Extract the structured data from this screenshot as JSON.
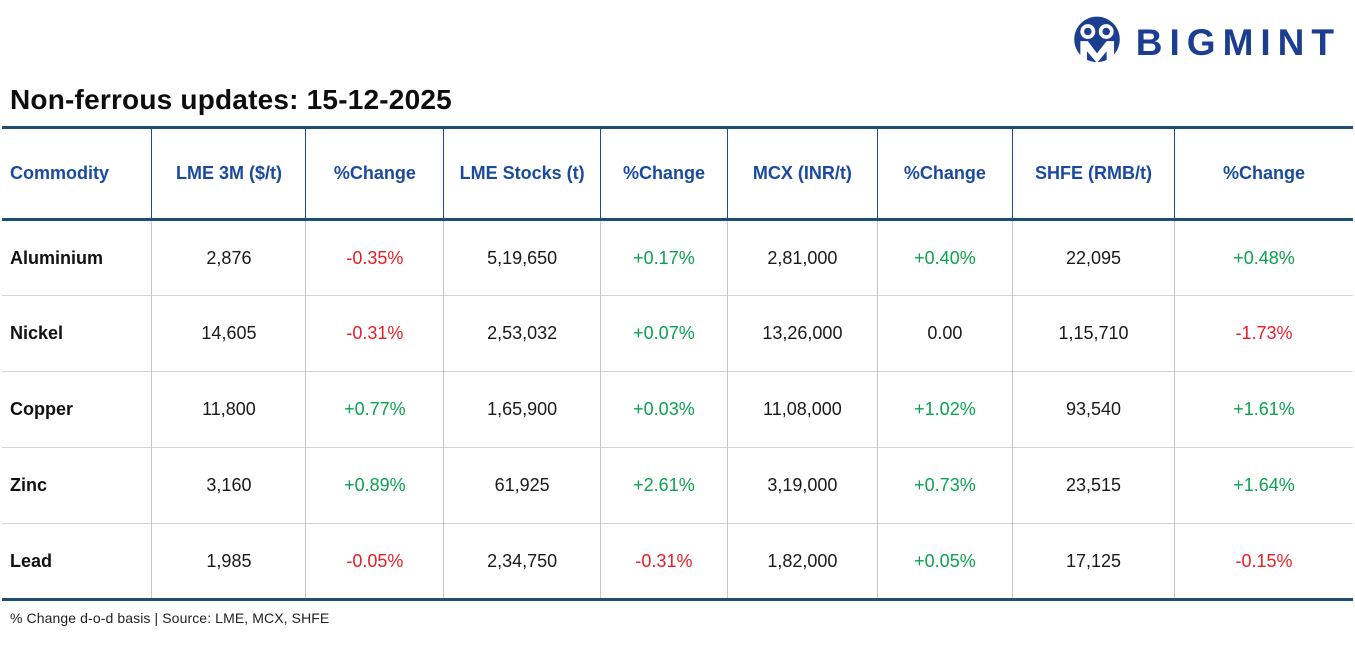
{
  "logo": {
    "text": "BIGMINT"
  },
  "page_title": "Non-ferrous updates: 15-12-2025",
  "chart_data": {
    "type": "table",
    "title": "Non-ferrous updates: 15-12-2025",
    "columns": [
      {
        "id": "commodity",
        "label": "Commodity"
      },
      {
        "id": "lme-3m",
        "label": "LME 3M ($/t)"
      },
      {
        "id": "lme-3m-change",
        "label": "%Change"
      },
      {
        "id": "lme-stocks",
        "label": "LME Stocks (t)"
      },
      {
        "id": "lme-stocks-change",
        "label": "%Change"
      },
      {
        "id": "mcx",
        "label": "MCX (INR/t)"
      },
      {
        "id": "mcx-change",
        "label": "%Change"
      },
      {
        "id": "shfe",
        "label": "SHFE (RMB/t)"
      },
      {
        "id": "shfe-change",
        "label": "%Change"
      }
    ],
    "rows": [
      {
        "commodity": "Aluminium",
        "cells": [
          {
            "text": "2,876",
            "tone": "plain"
          },
          {
            "text": "-0.35%",
            "tone": "neg"
          },
          {
            "text": "5,19,650",
            "tone": "plain"
          },
          {
            "text": "+0.17%",
            "tone": "pos"
          },
          {
            "text": "2,81,000",
            "tone": "plain"
          },
          {
            "text": "+0.40%",
            "tone": "pos"
          },
          {
            "text": "22,095",
            "tone": "plain"
          },
          {
            "text": "+0.48%",
            "tone": "pos"
          }
        ]
      },
      {
        "commodity": "Nickel",
        "cells": [
          {
            "text": "14,605",
            "tone": "plain"
          },
          {
            "text": "-0.31%",
            "tone": "neg"
          },
          {
            "text": "2,53,032",
            "tone": "plain"
          },
          {
            "text": "+0.07%",
            "tone": "pos"
          },
          {
            "text": "13,26,000",
            "tone": "plain"
          },
          {
            "text": "0.00",
            "tone": "plain"
          },
          {
            "text": "1,15,710",
            "tone": "plain"
          },
          {
            "text": "-1.73%",
            "tone": "neg"
          }
        ]
      },
      {
        "commodity": "Copper",
        "cells": [
          {
            "text": "11,800",
            "tone": "plain"
          },
          {
            "text": "+0.77%",
            "tone": "pos"
          },
          {
            "text": "1,65,900",
            "tone": "plain"
          },
          {
            "text": "+0.03%",
            "tone": "pos"
          },
          {
            "text": "11,08,000",
            "tone": "plain"
          },
          {
            "text": "+1.02%",
            "tone": "pos"
          },
          {
            "text": "93,540",
            "tone": "plain"
          },
          {
            "text": "+1.61%",
            "tone": "pos"
          }
        ]
      },
      {
        "commodity": "Zinc",
        "cells": [
          {
            "text": "3,160",
            "tone": "plain"
          },
          {
            "text": "+0.89%",
            "tone": "pos"
          },
          {
            "text": "61,925",
            "tone": "plain"
          },
          {
            "text": "+2.61%",
            "tone": "pos"
          },
          {
            "text": "3,19,000",
            "tone": "plain"
          },
          {
            "text": "+0.73%",
            "tone": "pos"
          },
          {
            "text": "23,515",
            "tone": "plain"
          },
          {
            "text": "+1.64%",
            "tone": "pos"
          }
        ]
      },
      {
        "commodity": "Lead",
        "cells": [
          {
            "text": "1,985",
            "tone": "plain"
          },
          {
            "text": "-0.05%",
            "tone": "neg"
          },
          {
            "text": "2,34,750",
            "tone": "plain"
          },
          {
            "text": "-0.31%",
            "tone": "neg"
          },
          {
            "text": "1,82,000",
            "tone": "plain"
          },
          {
            "text": "+0.05%",
            "tone": "pos"
          },
          {
            "text": "17,125",
            "tone": "plain"
          },
          {
            "text": "-0.15%",
            "tone": "neg"
          }
        ]
      }
    ]
  },
  "footer": {
    "note": "% Change d-o-d basis | Source: LME, MCX, SHFE"
  },
  "colors": {
    "positive": "#0aa34f",
    "negative": "#e41e26",
    "header_blue": "#1a4a9e",
    "border_navy": "#1d4f76",
    "logo_blue": "#1b3e91"
  }
}
